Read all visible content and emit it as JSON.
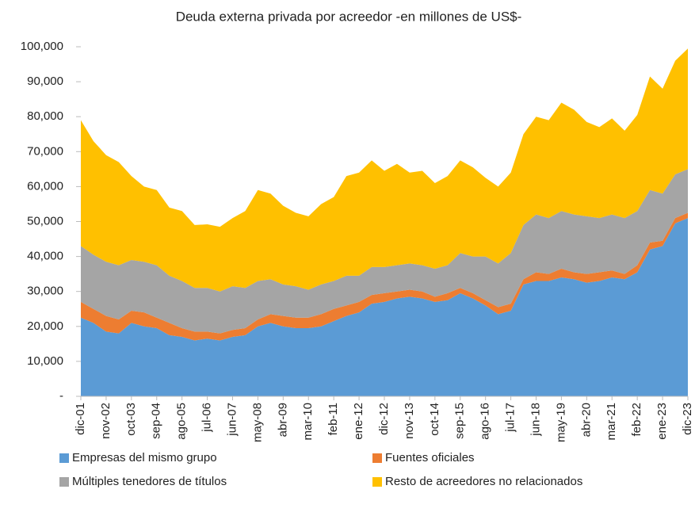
{
  "chart_data": {
    "type": "stacked_area",
    "title": "Deuda externa privada por acreedor -en millones de US$-",
    "categories": [
      "dic-01",
      null,
      "nov-02",
      null,
      "oct-03",
      null,
      "sep-04",
      null,
      "ago-05",
      null,
      "jul-06",
      null,
      "jun-07",
      null,
      "may-08",
      null,
      "abr-09",
      null,
      "mar-10",
      null,
      "feb-11",
      null,
      "ene-12",
      null,
      "dic-12",
      null,
      "nov-13",
      null,
      "oct-14",
      null,
      "sep-15",
      null,
      "ago-16",
      null,
      "jul-17",
      null,
      "jun-18",
      null,
      "may-19",
      null,
      "abr-20",
      null,
      "mar-21",
      null,
      "feb-22",
      null,
      "ene-23",
      null,
      "dic-23"
    ],
    "series": [
      {
        "name": "Empresas del mismo grupo",
        "color": "#5b9bd5",
        "values": [
          22500,
          21000,
          18500,
          18000,
          21000,
          20000,
          19500,
          17500,
          17000,
          16000,
          16500,
          16000,
          17000,
          17500,
          20000,
          21000,
          20000,
          19500,
          19500,
          20000,
          21500,
          23000,
          24000,
          26500,
          27000,
          28000,
          28500,
          28000,
          27000,
          27500,
          29500,
          28000,
          26000,
          23500,
          24500,
          32000,
          33000,
          33000,
          34000,
          33500,
          32500,
          33000,
          34000,
          33500,
          35500,
          42000,
          43000,
          49500,
          51000
        ]
      },
      {
        "name": "Fuentes oficiales",
        "color": "#ed7d31",
        "values": [
          4500,
          4000,
          4500,
          4000,
          3500,
          4000,
          3000,
          3500,
          2500,
          2500,
          2000,
          2000,
          2000,
          2000,
          2000,
          2500,
          3000,
          3000,
          3000,
          3500,
          3500,
          3000,
          3000,
          2500,
          2500,
          2000,
          2000,
          2000,
          1500,
          2000,
          1500,
          1500,
          1500,
          2000,
          2000,
          1500,
          2500,
          2000,
          2500,
          2000,
          2500,
          2500,
          2000,
          1500,
          2000,
          2000,
          1500,
          1500,
          1500
        ]
      },
      {
        "name": "Múltiples tenedores de títulos",
        "color": "#a5a5a5",
        "values": [
          16000,
          15500,
          15500,
          15500,
          14500,
          14500,
          15000,
          13500,
          13500,
          12500,
          12500,
          12000,
          12500,
          11500,
          11000,
          10000,
          9000,
          9000,
          8000,
          8500,
          8000,
          8500,
          7500,
          8000,
          7500,
          7500,
          7500,
          7500,
          8000,
          8000,
          10000,
          10500,
          12500,
          12500,
          14500,
          15500,
          16500,
          16000,
          16500,
          16500,
          16500,
          15500,
          16000,
          16000,
          15500,
          15000,
          13500,
          12500,
          12500
        ]
      },
      {
        "name": "Resto de acreedores no relacionados",
        "color": "#ffc000",
        "values": [
          36000,
          32500,
          30500,
          29500,
          24000,
          21500,
          21500,
          19500,
          20000,
          18000,
          18200,
          18500,
          19500,
          22000,
          26000,
          24500,
          22500,
          21000,
          21000,
          23000,
          24000,
          28500,
          29500,
          30500,
          27500,
          29000,
          26000,
          27000,
          24500,
          25500,
          26500,
          25500,
          22500,
          22000,
          23000,
          26000,
          28000,
          28000,
          31000,
          30000,
          27000,
          26000,
          27500,
          25000,
          27500,
          32500,
          30000,
          32500,
          34500
        ]
      }
    ],
    "ylim": [
      0,
      100000
    ],
    "yticks": [
      {
        "value": 0,
        "label": "-"
      },
      {
        "value": 10000,
        "label": "10,000"
      },
      {
        "value": 20000,
        "label": "20,000"
      },
      {
        "value": 30000,
        "label": "30,000"
      },
      {
        "value": 40000,
        "label": "40,000"
      },
      {
        "value": 50000,
        "label": "50,000"
      },
      {
        "value": 60000,
        "label": "60,000"
      },
      {
        "value": 70000,
        "label": "70,000"
      },
      {
        "value": 80000,
        "label": "80,000"
      },
      {
        "value": 90000,
        "label": "90,000"
      },
      {
        "value": 100000,
        "label": "100,000"
      }
    ]
  }
}
